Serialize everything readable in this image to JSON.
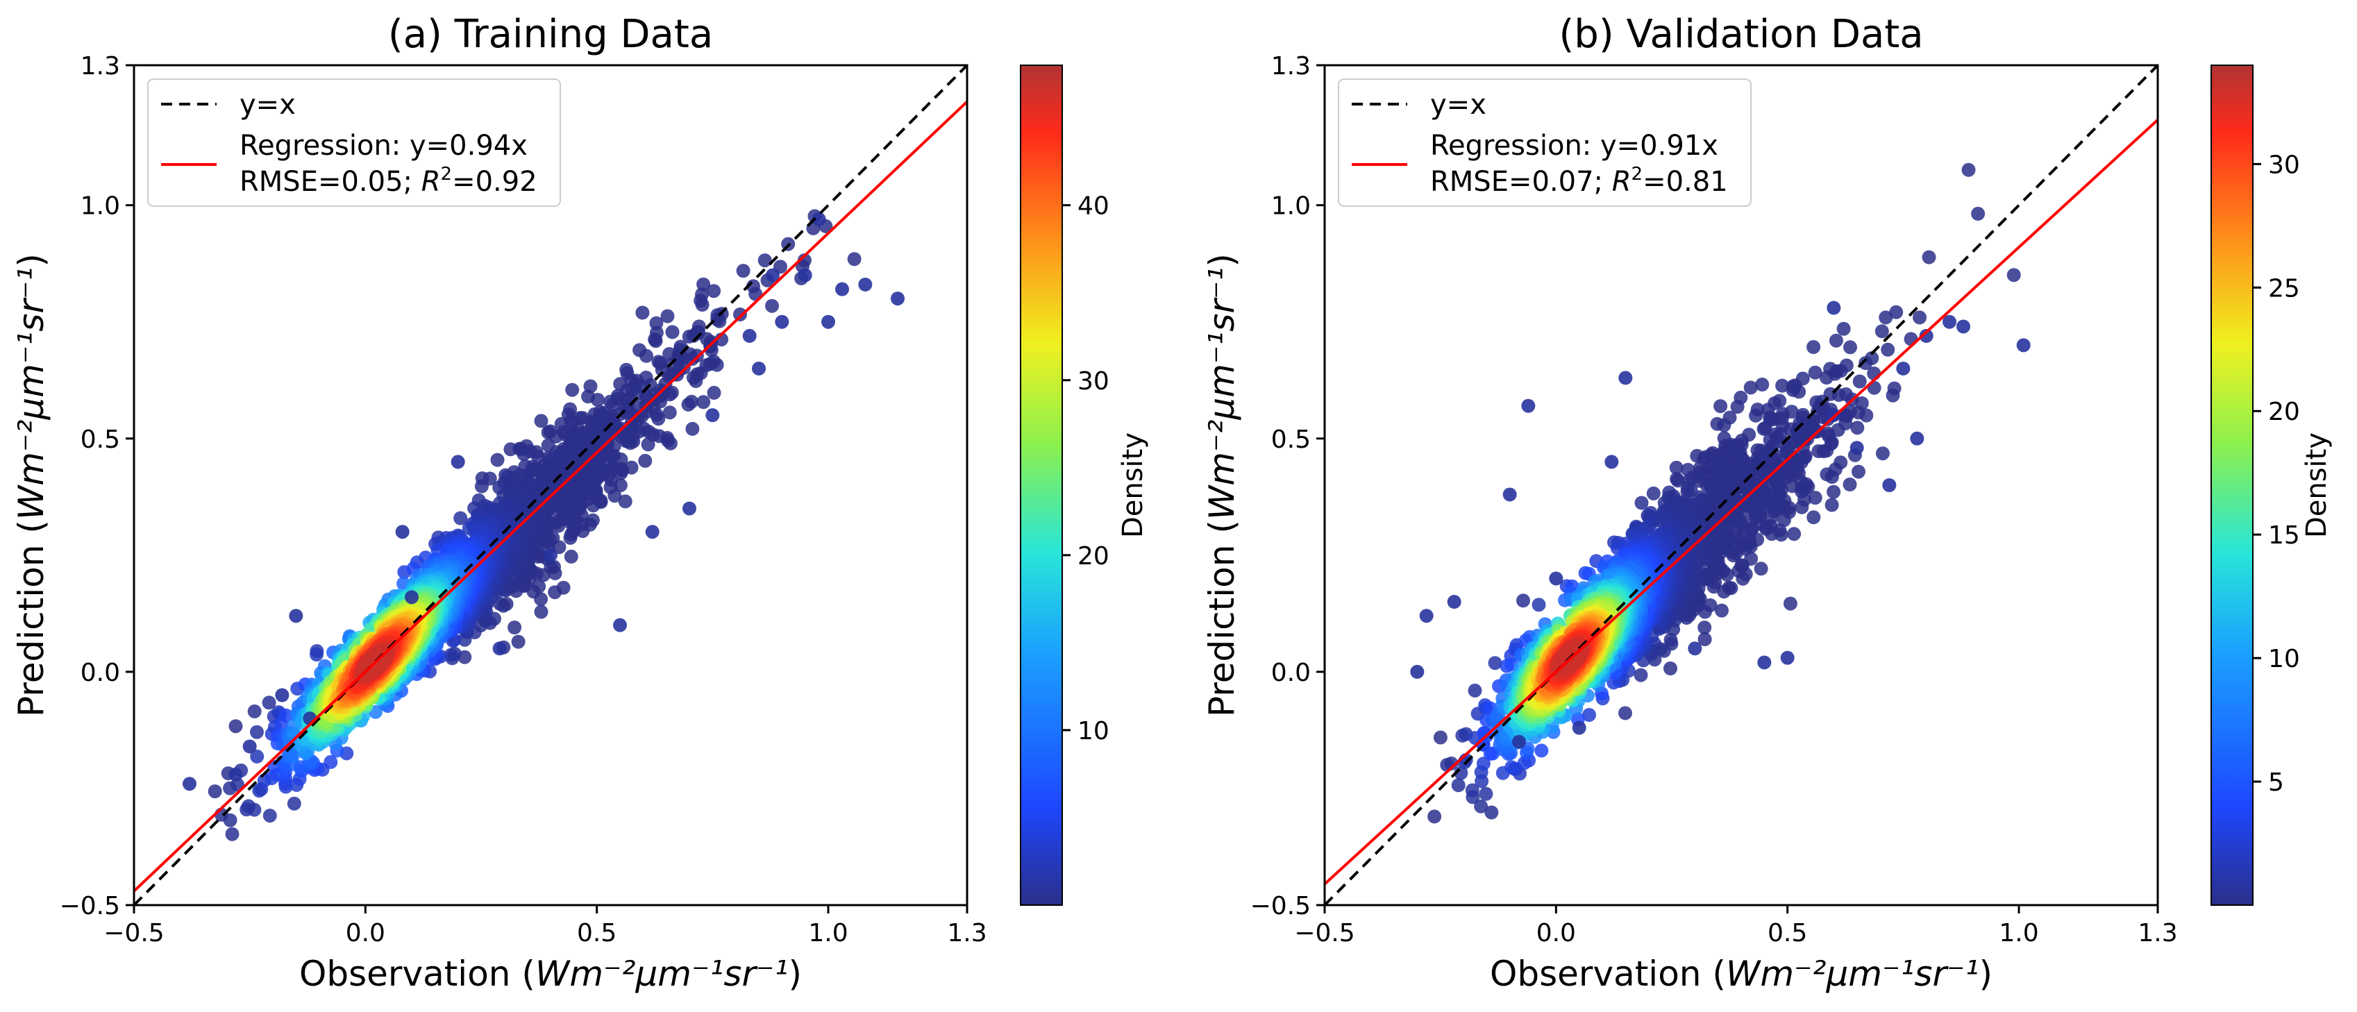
{
  "figure": {
    "xlabel_prefix": "Observation (",
    "xlabel_units": "Wm⁻²μm⁻¹sr⁻¹",
    "xlabel_suffix": ")",
    "ylabel_prefix": "Prediction (",
    "ylabel_units": "Wm⁻²μm⁻¹sr⁻¹",
    "ylabel_suffix": ")",
    "colorbar_label": "Density"
  },
  "chart_data": [
    {
      "type": "scatter",
      "title": "(a) Training Data",
      "xlim": [
        -0.5,
        1.3
      ],
      "ylim": [
        -0.5,
        1.3
      ],
      "xticks": [
        "−0.5",
        "0.0",
        "0.5",
        "1.0",
        "1.3"
      ],
      "xtick_values": [
        -0.5,
        0.0,
        0.5,
        1.0,
        1.3
      ],
      "yticks": [
        "−0.5",
        "0.0",
        "0.5",
        "1.0",
        "1.3"
      ],
      "ytick_values": [
        -0.5,
        0.0,
        0.5,
        1.0,
        1.3
      ],
      "lines": [
        {
          "name": "y=x",
          "slope": 1.0,
          "style": "dashed",
          "color": "#000000"
        },
        {
          "name": "Regression: y=0.94x",
          "slope": 0.94,
          "style": "solid",
          "color": "#ff0000"
        }
      ],
      "legend": {
        "position": "top-left",
        "entries": [
          "y=x",
          "Regression: y=0.94x"
        ],
        "stats": {
          "rmse": "RMSE=0.05; ",
          "r2_label": "R",
          "r2_sup": "2",
          "r2_value": "=0.92"
        }
      },
      "density_cloud": {
        "center": [
          0.02,
          0.02
        ],
        "slope": 0.94,
        "spread_x": 0.3,
        "spread_perp": 0.07
      },
      "outliers": [
        [
          -0.38,
          -0.24
        ],
        [
          -0.28,
          -0.22
        ],
        [
          -0.25,
          -0.16
        ],
        [
          -0.18,
          -0.05
        ],
        [
          -0.15,
          0.12
        ],
        [
          0.08,
          0.3
        ],
        [
          0.1,
          0.16
        ],
        [
          0.2,
          0.45
        ],
        [
          0.29,
          0.05
        ],
        [
          0.4,
          0.25
        ],
        [
          0.55,
          0.1
        ],
        [
          0.62,
          0.3
        ],
        [
          0.7,
          0.35
        ],
        [
          0.75,
          0.55
        ],
        [
          0.83,
          0.72
        ],
        [
          0.85,
          0.65
        ],
        [
          0.9,
          0.75
        ],
        [
          0.95,
          0.85
        ],
        [
          1.0,
          0.75
        ],
        [
          1.03,
          0.82
        ],
        [
          1.08,
          0.83
        ],
        [
          1.15,
          0.8
        ],
        [
          0.98,
          0.97
        ],
        [
          0.88,
          0.85
        ],
        [
          -0.12,
          -0.1
        ]
      ],
      "colorbar": {
        "min": 0,
        "max": 48,
        "ticks": [
          10,
          20,
          30,
          40
        ],
        "tick_labels": [
          "10",
          "20",
          "30",
          "40"
        ]
      }
    },
    {
      "type": "scatter",
      "title": "(b) Validation Data",
      "xlim": [
        -0.5,
        1.3
      ],
      "ylim": [
        -0.5,
        1.3
      ],
      "xticks": [
        "−0.5",
        "0.0",
        "0.5",
        "1.0",
        "1.3"
      ],
      "xtick_values": [
        -0.5,
        0.0,
        0.5,
        1.0,
        1.3
      ],
      "yticks": [
        "−0.5",
        "0.0",
        "0.5",
        "1.0",
        "1.3"
      ],
      "ytick_values": [
        -0.5,
        0.0,
        0.5,
        1.0,
        1.3
      ],
      "lines": [
        {
          "name": "y=x",
          "slope": 1.0,
          "style": "dashed",
          "color": "#000000"
        },
        {
          "name": "Regression: y=0.91x",
          "slope": 0.91,
          "style": "solid",
          "color": "#ff0000"
        }
      ],
      "legend": {
        "position": "top-left",
        "entries": [
          "y=x",
          "Regression: y=0.91x"
        ],
        "stats": {
          "rmse": "RMSE=0.07; ",
          "r2_label": "R",
          "r2_sup": "2",
          "r2_value": "=0.81"
        }
      },
      "density_cloud": {
        "center": [
          0.03,
          0.03
        ],
        "slope": 0.91,
        "spread_x": 0.25,
        "spread_perp": 0.08
      },
      "outliers": [
        [
          -0.3,
          0.0
        ],
        [
          -0.28,
          0.12
        ],
        [
          -0.22,
          0.15
        ],
        [
          -0.1,
          0.38
        ],
        [
          -0.06,
          0.57
        ],
        [
          0.0,
          0.2
        ],
        [
          0.12,
          0.45
        ],
        [
          0.15,
          0.63
        ],
        [
          0.3,
          0.05
        ],
        [
          0.45,
          0.02
        ],
        [
          0.5,
          0.03
        ],
        [
          0.6,
          0.55
        ],
        [
          0.65,
          0.48
        ],
        [
          0.72,
          0.4
        ],
        [
          0.75,
          0.65
        ],
        [
          0.8,
          0.72
        ],
        [
          0.85,
          0.75
        ],
        [
          0.88,
          0.74
        ],
        [
          1.01,
          0.7
        ],
        [
          0.78,
          0.5
        ],
        [
          -0.08,
          -0.15
        ],
        [
          0.05,
          -0.12
        ],
        [
          0.6,
          0.78
        ]
      ],
      "colorbar": {
        "min": 0,
        "max": 34,
        "ticks": [
          5,
          10,
          15,
          20,
          25,
          30
        ],
        "tick_labels": [
          "5",
          "10",
          "15",
          "20",
          "25",
          "30"
        ]
      }
    }
  ]
}
